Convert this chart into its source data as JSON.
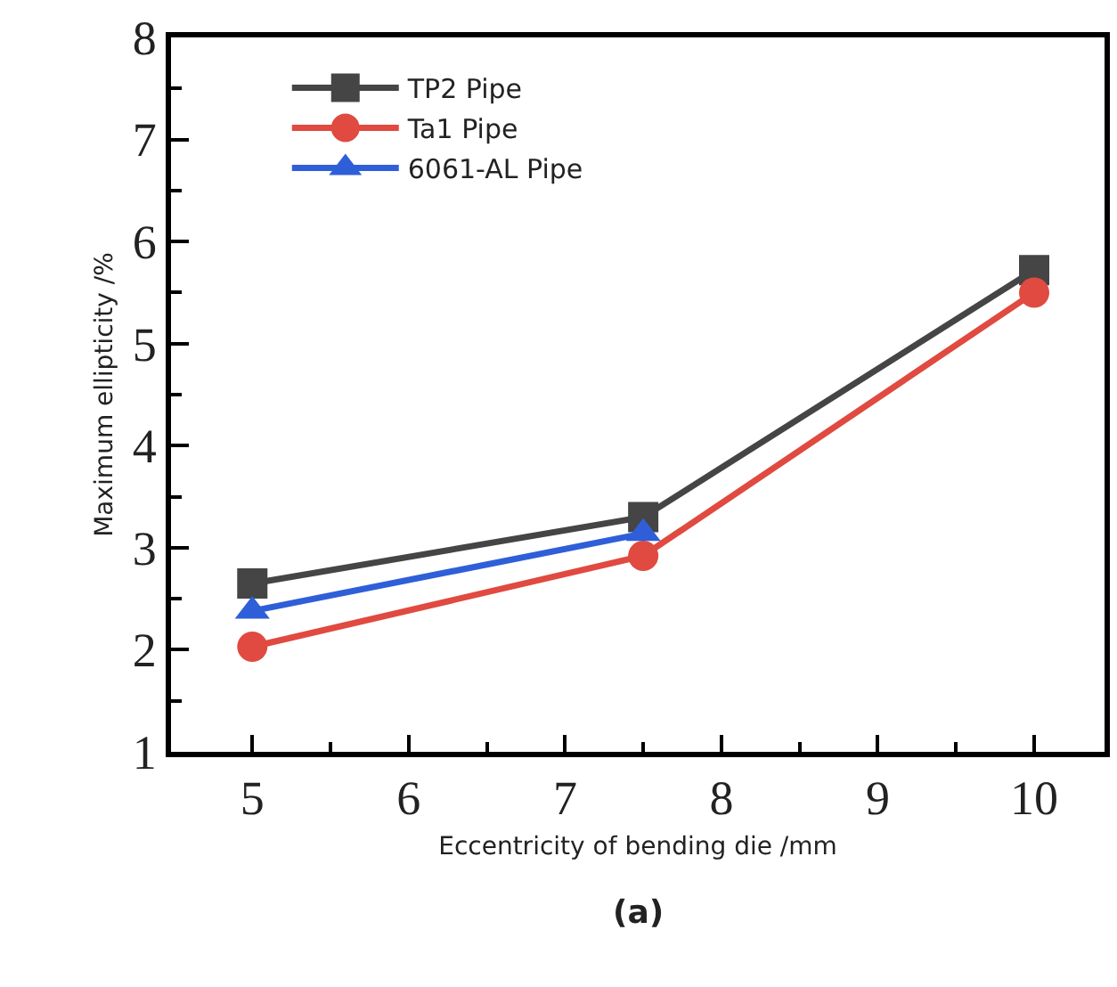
{
  "chart_data": {
    "type": "line",
    "xlabel": "Eccentricity of bending die /mm",
    "ylabel": "Maximum ellipticity /%",
    "x": [
      5,
      7.5,
      10
    ],
    "series": [
      {
        "name": "TP2 Pipe",
        "color": "#454545",
        "marker": "square",
        "values": [
          2.65,
          3.3,
          5.72
        ]
      },
      {
        "name": "Ta1 Pipe",
        "color": "#e04a40",
        "marker": "circle",
        "values": [
          2.03,
          2.92,
          5.5
        ]
      },
      {
        "name": "6061-AL Pipe",
        "color": "#2f5fd8",
        "marker": "triangle",
        "values": [
          2.38,
          3.14,
          null
        ]
      }
    ],
    "xlim": [
      4.48,
      10.45
    ],
    "ylim": [
      1,
      8
    ],
    "xticks": [
      5,
      {
        "value": 5.5,
        "label": null
      },
      6,
      {
        "value": 6.5,
        "label": null
      },
      7,
      {
        "value": 7.5,
        "label": null
      },
      8,
      {
        "value": 8.5,
        "label": null
      },
      9,
      {
        "value": 9.5,
        "label": null
      },
      10
    ],
    "yticks": [
      1,
      {
        "value": 1.5,
        "label": null
      },
      2,
      {
        "value": 2.5,
        "label": null
      },
      3,
      {
        "value": 3.5,
        "label": null
      },
      4,
      {
        "value": 4.5,
        "label": null
      },
      5,
      {
        "value": 5.5,
        "label": null
      },
      6,
      {
        "value": 6.5,
        "label": null
      },
      7,
      {
        "value": 7.5,
        "label": null
      },
      8
    ],
    "legend": "top left",
    "line_style": "solid",
    "annotations": [
      "(a)"
    ]
  }
}
